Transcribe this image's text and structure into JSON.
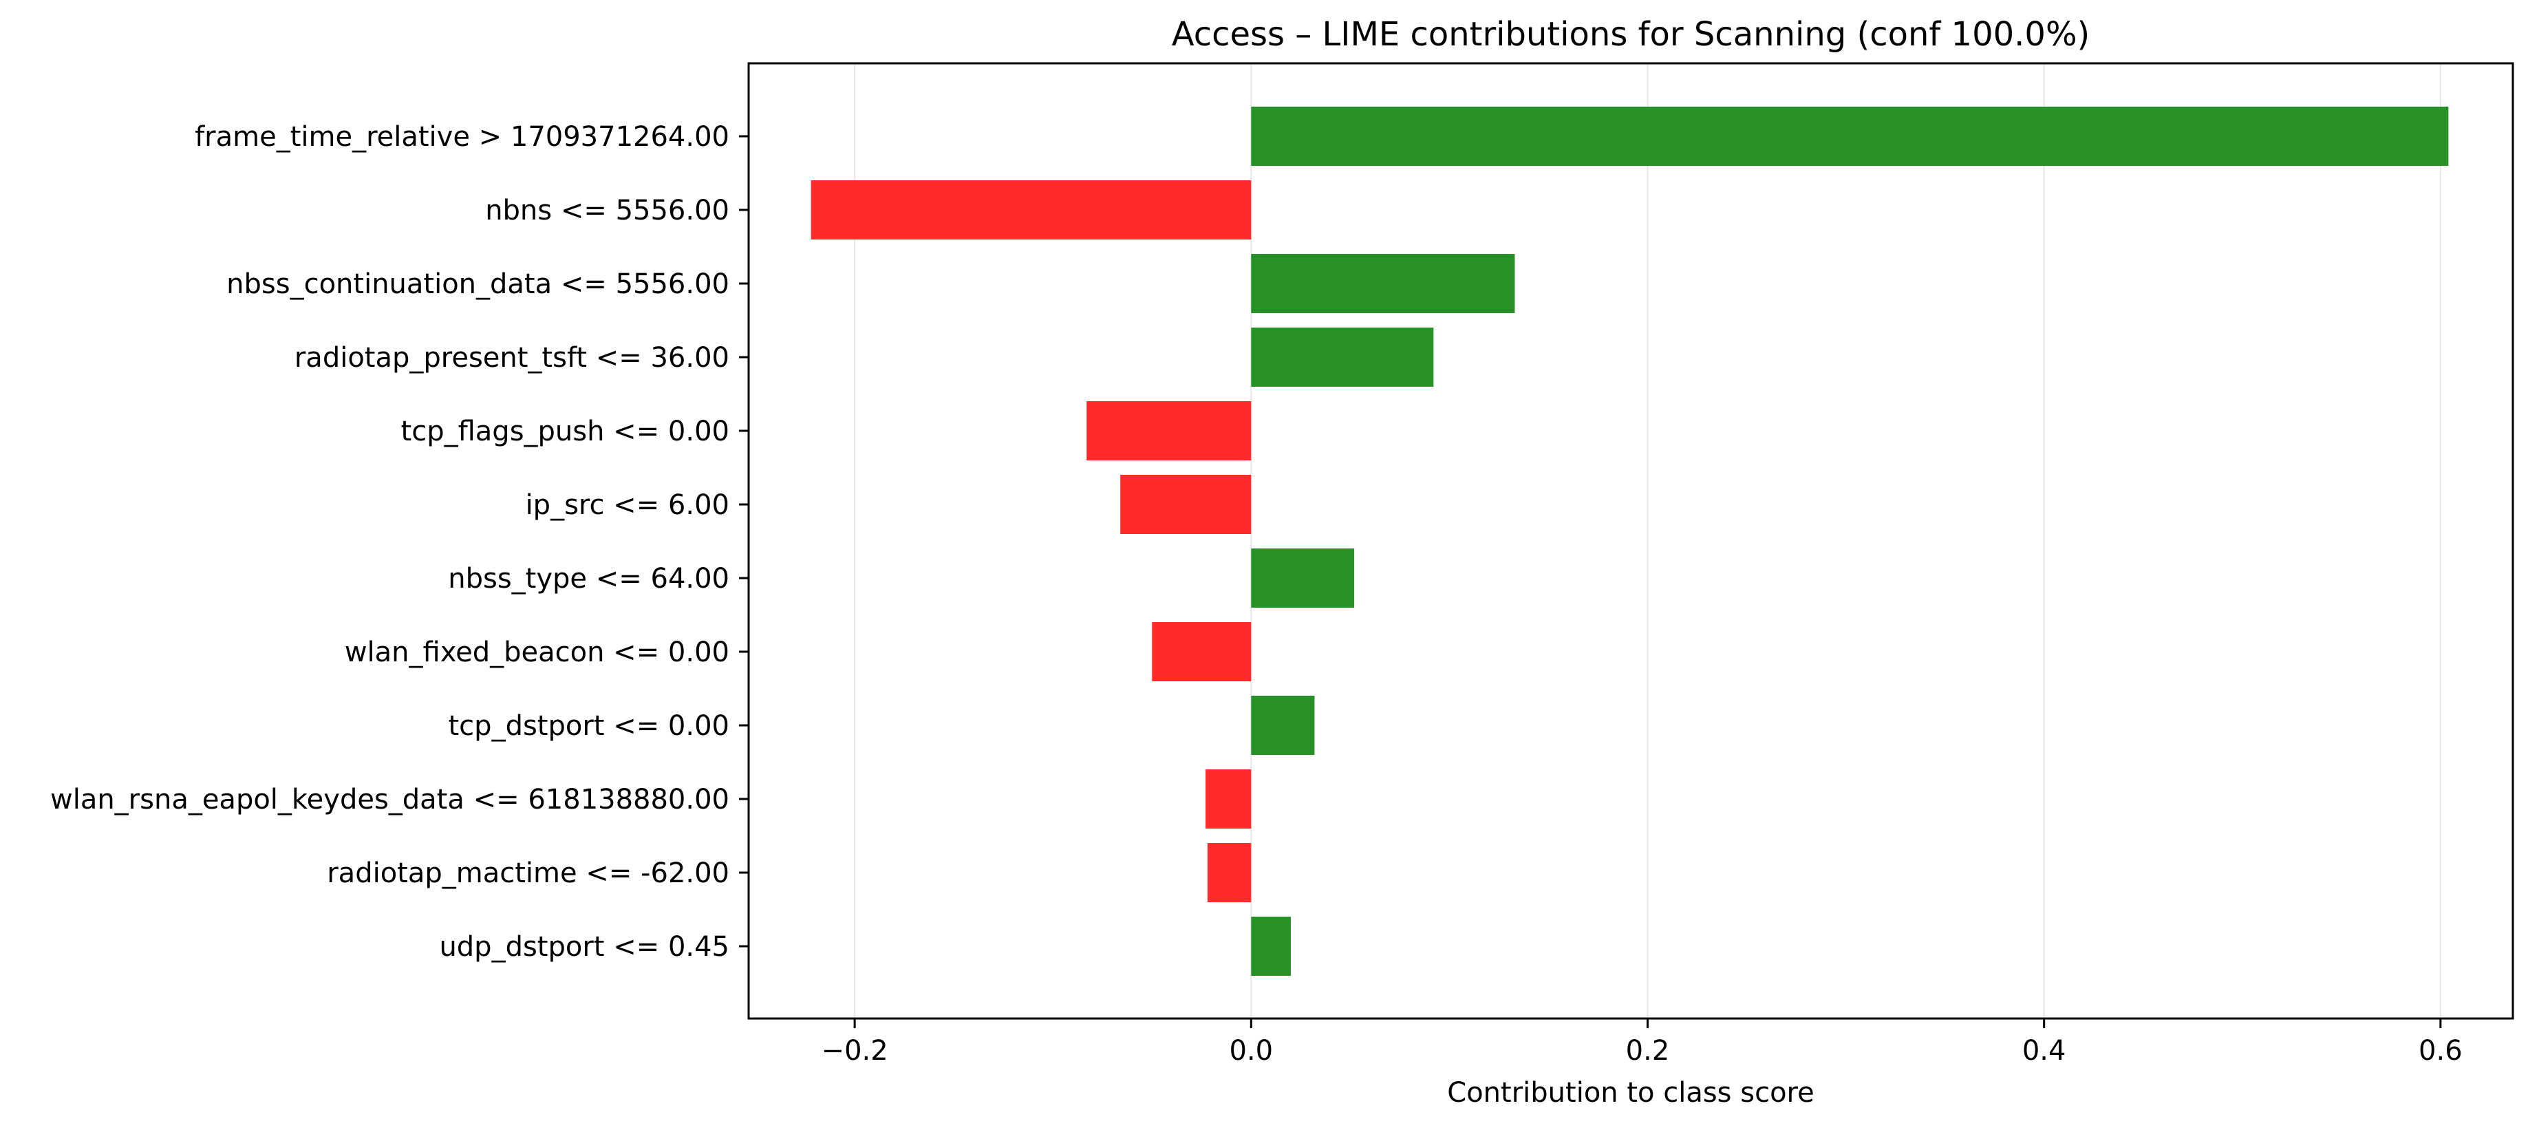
{
  "chart_data": {
    "type": "bar",
    "orientation": "horizontal",
    "title": "Access – LIME contributions for Scanning (conf 100.0%)",
    "xlabel": "Contribution to class score",
    "ylabel": "",
    "xlim": [
      -0.2535,
      0.6365
    ],
    "xticks": [
      -0.2,
      0.0,
      0.2,
      0.4,
      0.6
    ],
    "xtick_labels": [
      "−0.2",
      "0.0",
      "0.2",
      "0.4",
      "0.6"
    ],
    "grid": "vertical",
    "categories": [
      "frame_time_relative > 1709371264.00",
      "nbns <= 5556.00",
      "nbss_continuation_data <= 5556.00",
      "radiotap_present_tsft <= 36.00",
      "tcp_flags_push <= 0.00",
      "ip_src <= 6.00",
      "nbss_type <= 64.00",
      "wlan_fixed_beacon <= 0.00",
      "tcp_dstport <= 0.00",
      "wlan_rsna_eapol_keydes_data <= 618138880.00",
      "radiotap_mactime <= -62.00",
      "udp_dstport <= 0.45"
    ],
    "values": [
      0.604,
      -0.222,
      0.133,
      0.092,
      -0.083,
      -0.066,
      0.052,
      -0.05,
      0.032,
      -0.023,
      -0.022,
      0.02
    ],
    "colors": {
      "positive": "#279127",
      "negative": "#ff2a2a"
    }
  }
}
